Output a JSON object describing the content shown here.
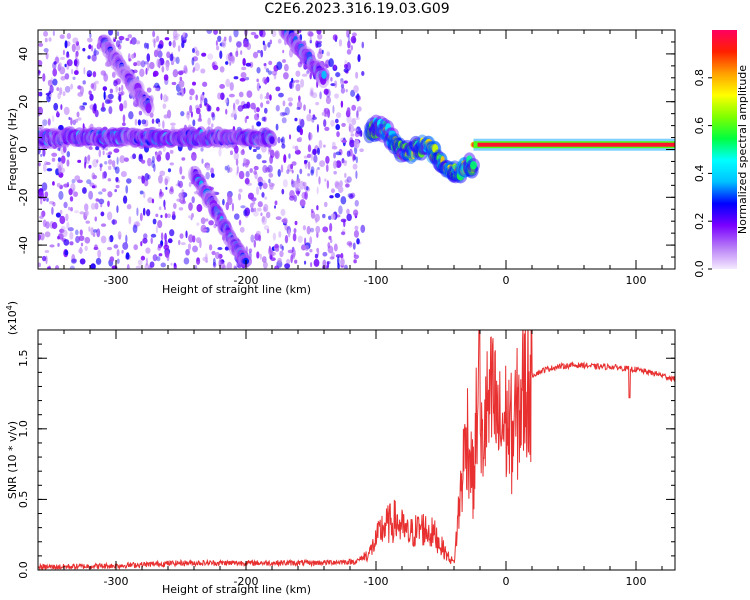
{
  "title": "C2E6.2023.316.19.03.G09",
  "colors": {
    "snr_line": "#e83030",
    "speckle": "#7a1cf0"
  },
  "chart_data": [
    {
      "type": "heatmap",
      "xlabel": "Height of straight line (km)",
      "ylabel": "Frequency (Hz)",
      "xlim": [
        -360,
        130
      ],
      "ylim": [
        -50,
        50
      ],
      "xticks": [
        -300,
        -200,
        -100,
        0,
        100
      ],
      "xtick_labels": [
        "-300",
        "-200",
        "-100",
        "0",
        "100"
      ],
      "yticks": [
        -40,
        -20,
        0,
        20,
        40
      ],
      "ytick_labels": [
        "-40",
        "-20",
        "0",
        "20",
        "40"
      ],
      "colorbar": {
        "label": "Normalized spectral amplitude",
        "range": [
          0,
          1
        ],
        "ticks": [
          0,
          0.2,
          0.4,
          0.6,
          0.8
        ],
        "tick_labels": [
          "0.0",
          "0.2",
          "0.4",
          "0.6",
          "0.8"
        ],
        "colormap": [
          "#f4eaff",
          "#b77cf6",
          "#7a00ff",
          "#0000ff",
          "#00c0ff",
          "#00ffff",
          "#00ff40",
          "#7fff00",
          "#ffff00",
          "#ffa000",
          "#ff2000",
          "#ff0060"
        ]
      },
      "features": [
        {
          "name": "noise speckle",
          "x_range": [
            -360,
            -110
          ],
          "y_range": [
            -50,
            50
          ],
          "amplitude": 0.2
        },
        {
          "name": "upper diagonal",
          "x": [
            -170,
            -140
          ],
          "y": [
            50,
            30
          ],
          "amplitude": 0.25
        },
        {
          "name": "steep diagonal",
          "x": [
            -310,
            -275
          ],
          "y": [
            45,
            18
          ],
          "amplitude": 0.2
        },
        {
          "name": "descending diagonal",
          "x": [
            -240,
            -200
          ],
          "y": [
            -10,
            -48
          ],
          "amplitude": 0.25
        },
        {
          "name": "horizontal band",
          "x": [
            -360,
            -180
          ],
          "y": [
            5,
            5
          ],
          "amplitude": 0.3
        },
        {
          "name": "signal onset",
          "x": [
            -105,
            -25
          ],
          "y": [
            8,
            -10
          ],
          "amplitude": 0.5
        },
        {
          "name": "main tone",
          "x": [
            -25,
            130
          ],
          "y": [
            2,
            2
          ],
          "amplitude": 0.95
        }
      ]
    },
    {
      "type": "line",
      "xlabel": "Height of straight line (km)",
      "ylabel": "SNR (10 * v/v)",
      "y_multiplier_label": "(x10",
      "y_multiplier_exp": "4",
      "xlim": [
        -360,
        130
      ],
      "ylim": [
        0,
        1.7
      ],
      "xticks": [
        -300,
        -200,
        -100,
        0,
        100
      ],
      "xtick_labels": [
        "-300",
        "-200",
        "-100",
        "0",
        "100"
      ],
      "yticks": [
        0,
        0.5,
        1.0,
        1.5
      ],
      "ytick_labels": [
        "0.0",
        "0.5",
        "1.0",
        "1.5"
      ],
      "series": [
        {
          "x": [
            -360,
            -300,
            -250,
            -200,
            -150,
            -115,
            -105,
            -95,
            -85,
            -75,
            -65,
            -55,
            -45,
            -40,
            -35,
            -30,
            -25,
            -22,
            -20,
            -15,
            -10,
            -5,
            0,
            5,
            10,
            15,
            20,
            30,
            40,
            50,
            60,
            70,
            80,
            90,
            100,
            110,
            120,
            130
          ],
          "y": [
            0.02,
            0.03,
            0.05,
            0.05,
            0.05,
            0.06,
            0.12,
            0.3,
            0.35,
            0.25,
            0.3,
            0.25,
            0.1,
            0.05,
            0.55,
            1.0,
            0.6,
            1.2,
            0.8,
            1.1,
            1.2,
            1.0,
            1.05,
            0.95,
            1.15,
            1.3,
            1.38,
            1.42,
            1.44,
            1.45,
            1.45,
            1.44,
            1.44,
            1.43,
            1.42,
            1.4,
            1.38,
            1.35
          ]
        }
      ]
    }
  ]
}
